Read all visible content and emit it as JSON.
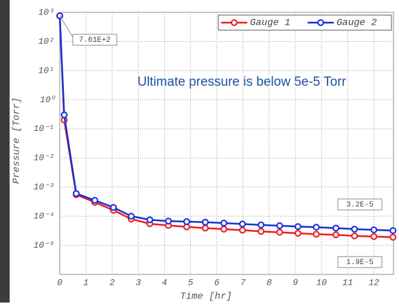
{
  "chart_data": {
    "type": "line",
    "x_label": "Time [hr]",
    "y_label": "Pressure [Torr]",
    "note": "Ultimate pressure is below 5e-5 Torr",
    "annotations": [
      "7.61E+2",
      "3.2E-5",
      "1.9E-5"
    ],
    "x": [
      0,
      0.17,
      0.63,
      1.34,
      2.05,
      2.73,
      3.44,
      4.15,
      4.85,
      5.56,
      6.27,
      6.98,
      7.69,
      8.4,
      9.1,
      9.8,
      10.55,
      11.26,
      12,
      12.73
    ],
    "series": [
      {
        "name": "Gauge 1",
        "color": "#ee1c1c",
        "values": [
          761,
          0.2,
          0.00055,
          0.0003,
          0.00016,
          8e-05,
          5.5e-05,
          4.8e-05,
          4.3e-05,
          3.9e-05,
          3.6e-05,
          3.3e-05,
          3e-05,
          2.8e-05,
          2.6e-05,
          2.4e-05,
          2.3e-05,
          2.1e-05,
          2e-05,
          1.9e-05
        ]
      },
      {
        "name": "Gauge 2",
        "color": "#1530d6",
        "values": [
          761,
          0.3,
          0.0006,
          0.00035,
          0.0002,
          0.0001,
          7.5e-05,
          6.8e-05,
          6.5e-05,
          6.2e-05,
          5.8e-05,
          5.4e-05,
          5e-05,
          4.7e-05,
          4.4e-05,
          4.2e-05,
          3.9e-05,
          3.6e-05,
          3.4e-05,
          3.2e-05
        ]
      }
    ],
    "xlim": [
      0,
      12.75
    ],
    "xticks": [
      0,
      1,
      2,
      3,
      4,
      5,
      6,
      7,
      8,
      9,
      10,
      11,
      12
    ],
    "ylim": [
      1e-06,
      1000
    ],
    "y_scale": "log",
    "yticks": [
      {
        "value": 1000,
        "label": "10³"
      },
      {
        "value": 100,
        "label": "10²"
      },
      {
        "value": 10,
        "label": "10¹"
      },
      {
        "value": 1,
        "label": "10⁰"
      },
      {
        "value": 0.1,
        "label": "10⁻¹"
      },
      {
        "value": 0.01,
        "label": "10⁻²"
      },
      {
        "value": 0.001,
        "label": "10⁻³"
      },
      {
        "value": 0.0001,
        "label": "10⁻⁴"
      },
      {
        "value": 1e-05,
        "label": "10⁻⁵"
      }
    ],
    "grid": true,
    "legend": "upper right"
  }
}
